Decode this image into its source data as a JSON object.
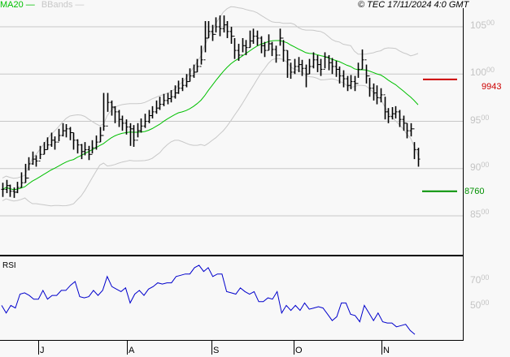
{
  "header": {
    "legend": [
      {
        "label": "MA20",
        "color": "#00c000"
      },
      {
        "label": "BBands",
        "color": "#c8c8c8"
      }
    ],
    "copyright": "© TEC 17/11/2024 4:0 GMT"
  },
  "chart_data": [
    {
      "type": "ohlc",
      "title": "",
      "ylim": [
        8150,
        10780
      ],
      "yticks": [
        {
          "int": "105",
          "dec": "00",
          "value": 10500
        },
        {
          "int": "100",
          "dec": "00",
          "value": 10000
        },
        {
          "int": "95",
          "dec": "00",
          "value": 9500
        },
        {
          "int": "90",
          "dec": "00",
          "value": 9000
        },
        {
          "int": "85",
          "dec": "00",
          "value": 8500
        }
      ],
      "levels": [
        {
          "label": "9943",
          "value": 9943,
          "color": "#cc0000"
        },
        {
          "label": "8760",
          "value": 8760,
          "color": "#009000"
        }
      ],
      "indicators": {
        "ma_period": 20,
        "bbands": true
      },
      "bars_chl": [
        [
          8780,
          8850,
          8700
        ],
        [
          8820,
          8880,
          8740
        ],
        [
          8760,
          8830,
          8700
        ],
        [
          8750,
          8800,
          8690
        ],
        [
          8800,
          8860,
          8740
        ],
        [
          8850,
          8960,
          8800
        ],
        [
          8900,
          9050,
          8850
        ],
        [
          9050,
          9120,
          8980
        ],
        [
          9100,
          9180,
          9040
        ],
        [
          9080,
          9140,
          9020
        ],
        [
          9150,
          9240,
          9100
        ],
        [
          9200,
          9280,
          9150
        ],
        [
          9250,
          9330,
          9200
        ],
        [
          9300,
          9380,
          9230
        ],
        [
          9280,
          9340,
          9200
        ],
        [
          9350,
          9420,
          9290
        ],
        [
          9400,
          9480,
          9340
        ],
        [
          9420,
          9470,
          9330
        ],
        [
          9380,
          9440,
          9300
        ],
        [
          9300,
          9380,
          9200
        ],
        [
          9250,
          9310,
          9160
        ],
        [
          9180,
          9260,
          9100
        ],
        [
          9200,
          9280,
          9140
        ],
        [
          9150,
          9240,
          9090
        ],
        [
          9220,
          9300,
          9160
        ],
        [
          9280,
          9350,
          9200
        ],
        [
          9350,
          9440,
          9280
        ],
        [
          9450,
          9800,
          9400
        ],
        [
          9700,
          9800,
          9600
        ],
        [
          9650,
          9720,
          9560
        ],
        [
          9600,
          9660,
          9480
        ],
        [
          9520,
          9620,
          9440
        ],
        [
          9480,
          9560,
          9400
        ],
        [
          9440,
          9520,
          9360
        ],
        [
          9420,
          9480,
          9240
        ],
        [
          9300,
          9460,
          9230
        ],
        [
          9400,
          9480,
          9330
        ],
        [
          9450,
          9530,
          9380
        ],
        [
          9500,
          9580,
          9430
        ],
        [
          9560,
          9620,
          9480
        ],
        [
          9600,
          9660,
          9530
        ],
        [
          9640,
          9720,
          9580
        ],
        [
          9680,
          9760,
          9620
        ],
        [
          9720,
          9790,
          9660
        ],
        [
          9740,
          9800,
          9680
        ],
        [
          9760,
          9830,
          9700
        ],
        [
          9800,
          9880,
          9740
        ],
        [
          9850,
          9930,
          9790
        ],
        [
          9880,
          9960,
          9820
        ],
        [
          9920,
          10000,
          9860
        ],
        [
          9980,
          10060,
          9920
        ],
        [
          10020,
          10100,
          9960
        ],
        [
          10080,
          10160,
          10020
        ],
        [
          10150,
          10300,
          10100
        ],
        [
          10380,
          10560,
          10230
        ],
        [
          10450,
          10560,
          10380
        ],
        [
          10420,
          10520,
          10350
        ],
        [
          10500,
          10600,
          10440
        ],
        [
          10480,
          10620,
          10400
        ],
        [
          10520,
          10620,
          10440
        ],
        [
          10450,
          10560,
          10380
        ],
        [
          10400,
          10500,
          10320
        ],
        [
          10250,
          10380,
          10160
        ],
        [
          10200,
          10320,
          10140
        ],
        [
          10300,
          10380,
          10230
        ],
        [
          10280,
          10360,
          10200
        ],
        [
          10350,
          10460,
          10280
        ],
        [
          10400,
          10480,
          10320
        ],
        [
          10380,
          10460,
          10300
        ],
        [
          10300,
          10400,
          10220
        ],
        [
          10250,
          10340,
          10180
        ],
        [
          10320,
          10420,
          10250
        ],
        [
          10260,
          10340,
          10190
        ],
        [
          10200,
          10300,
          10120
        ],
        [
          10380,
          10480,
          10300
        ],
        [
          10250,
          10360,
          10130
        ],
        [
          10150,
          10250,
          9960
        ],
        [
          10020,
          10120,
          9950
        ],
        [
          10080,
          10160,
          10000
        ],
        [
          10100,
          10180,
          10020
        ],
        [
          10060,
          10150,
          9980
        ],
        [
          10000,
          10100,
          9860
        ],
        [
          10080,
          10160,
          10000
        ],
        [
          10150,
          10230,
          10060
        ],
        [
          10100,
          10200,
          10020
        ],
        [
          10050,
          10160,
          9980
        ],
        [
          10180,
          10230,
          10060
        ],
        [
          10120,
          10200,
          10040
        ],
        [
          10080,
          10170,
          10000
        ],
        [
          10050,
          10140,
          9970
        ],
        [
          9980,
          10080,
          9900
        ],
        [
          9950,
          10040,
          9860
        ],
        [
          9880,
          9980,
          9820
        ],
        [
          9920,
          9990,
          9840
        ],
        [
          9900,
          9980,
          9820
        ],
        [
          10050,
          10120,
          9960
        ],
        [
          10150,
          10260,
          10050
        ],
        [
          9980,
          10100,
          9900
        ],
        [
          9850,
          9960,
          9760
        ],
        [
          9800,
          9900,
          9720
        ],
        [
          9750,
          9880,
          9680
        ],
        [
          9780,
          9850,
          9700
        ],
        [
          9600,
          9760,
          9520
        ],
        [
          9550,
          9640,
          9480
        ],
        [
          9580,
          9650,
          9520
        ],
        [
          9600,
          9660,
          9530
        ],
        [
          9520,
          9620,
          9440
        ],
        [
          9480,
          9560,
          9400
        ],
        [
          9400,
          9480,
          9320
        ],
        [
          9420,
          9480,
          9340
        ],
        [
          9200,
          9280,
          9100
        ],
        [
          9100,
          9220,
          9020
        ]
      ]
    },
    {
      "type": "line",
      "title": "RSI",
      "ylim": [
        22,
        88
      ],
      "yticks": [
        {
          "int": "70",
          "dec": "00",
          "value": 70
        },
        {
          "int": "50",
          "dec": "00",
          "value": 50
        }
      ],
      "values": [
        51,
        45,
        51,
        49,
        60,
        61,
        59,
        56,
        56,
        63,
        56,
        59,
        59,
        63,
        63,
        67,
        70,
        58,
        57,
        58,
        63,
        59,
        63,
        74,
        66,
        64,
        62,
        65,
        53,
        60,
        63,
        59,
        64,
        66,
        69,
        68,
        69,
        69,
        74,
        75,
        76,
        76,
        81,
        83,
        78,
        81,
        74,
        76,
        76,
        62,
        61,
        60,
        65,
        62,
        60,
        62,
        54,
        54,
        57,
        56,
        62,
        45,
        51,
        47,
        51,
        47,
        53,
        48,
        49,
        50,
        49,
        44,
        39,
        42,
        53,
        53,
        44,
        43,
        38,
        51,
        45,
        39,
        45,
        38,
        37,
        37,
        34,
        35,
        36,
        31,
        28
      ]
    }
  ],
  "xaxis": {
    "months": [
      "J",
      "A",
      "S",
      "O",
      "N"
    ]
  }
}
